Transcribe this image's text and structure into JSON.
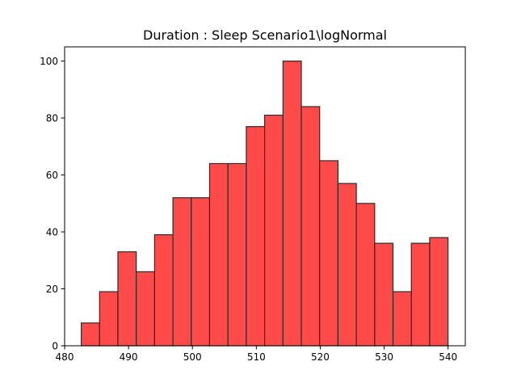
{
  "chart_data": {
    "type": "bar",
    "title": "Duration : Sleep Scenario1\\logNormal",
    "xlabel": "",
    "ylabel": "",
    "xlim": [
      480.0,
      542.7
    ],
    "ylim": [
      0,
      105
    ],
    "xticks": [
      480,
      490,
      500,
      510,
      520,
      530,
      540
    ],
    "yticks": [
      0,
      20,
      40,
      60,
      80,
      100
    ],
    "grid": false,
    "bins": {
      "start": 482.6,
      "width": 2.87,
      "edges_from": "start + i * width"
    },
    "values": [
      8,
      19,
      33,
      26,
      39,
      52,
      52,
      64,
      64,
      77,
      81,
      100,
      84,
      65,
      57,
      50,
      36,
      19,
      36,
      38
    ],
    "colors": {
      "bar_fill": "#ff4a4a",
      "bar_edge": "#2b2b2b",
      "axis": "#000000"
    }
  }
}
